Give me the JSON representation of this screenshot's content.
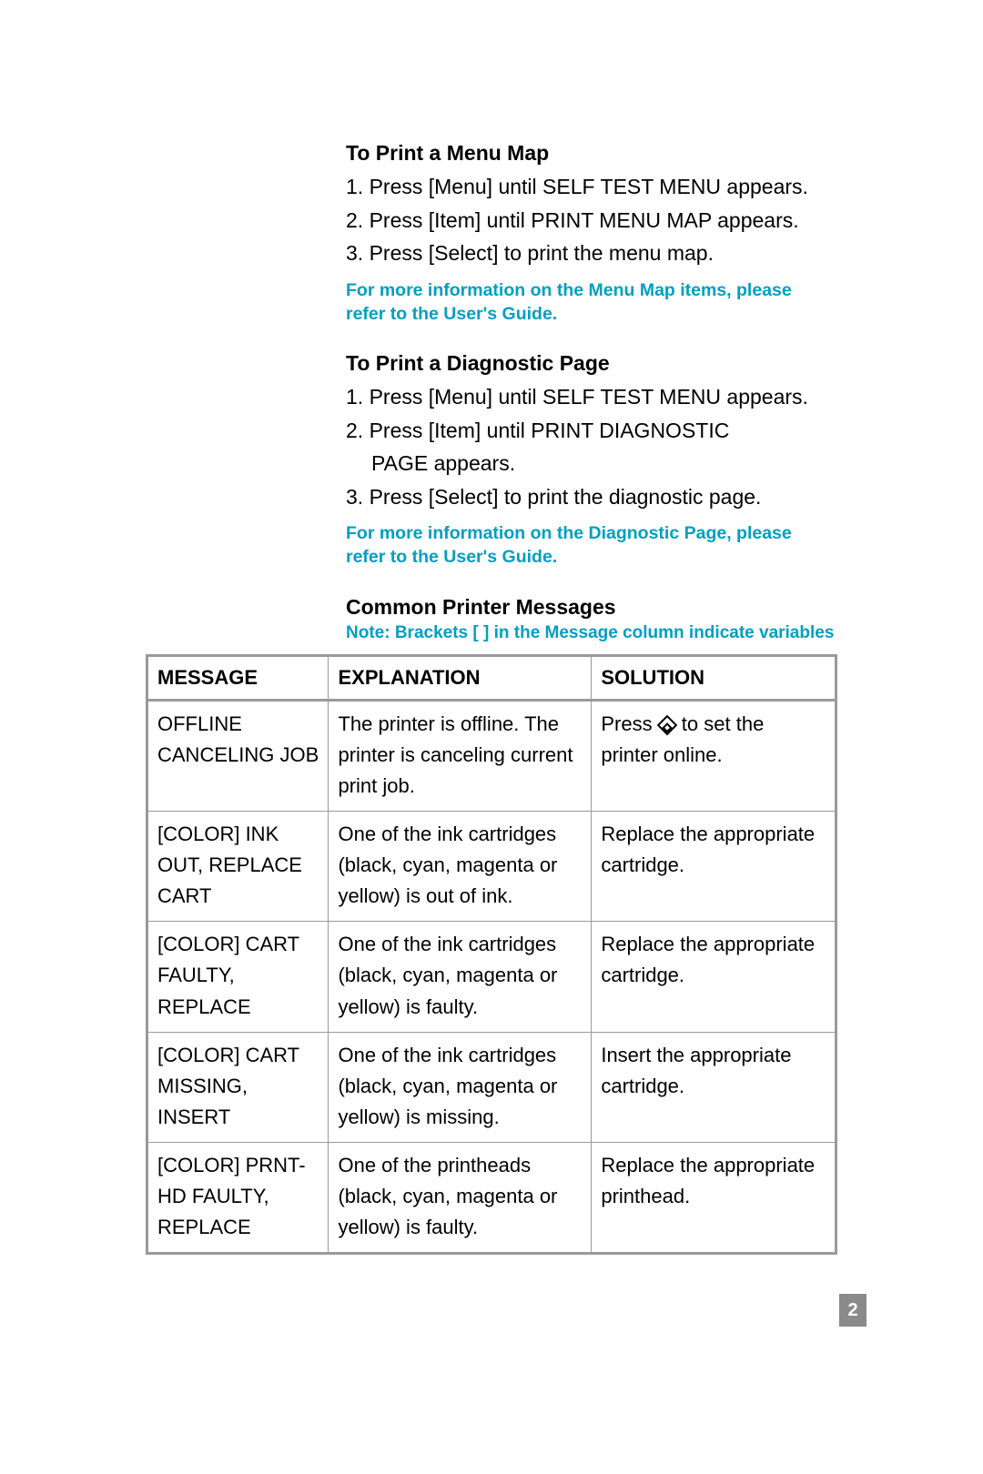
{
  "menuMap": {
    "heading": "To Print a Menu Map",
    "steps": [
      "1.  Press [Menu] until SELF TEST MENU appears.",
      "2.  Press [Item] until PRINT MENU MAP appears.",
      "3.  Press [Select] to print the menu map."
    ],
    "note": "For more information on the Menu Map items, please refer to the User's Guide."
  },
  "diagPage": {
    "heading": "To Print a Diagnostic Page",
    "steps": [
      "1.  Press [Menu] until SELF TEST MENU appears.",
      "2. Press [Item] until PRINT DIAGNOSTIC",
      "PAGE appears.",
      "3.  Press [Select] to print the diagnostic page."
    ],
    "note": "For more information on the Diagnostic Page, please refer  to the User's Guide."
  },
  "messagesSection": {
    "heading": "Common Printer Messages",
    "note": "Note: Brackets [ ] in the Message column indicate variables"
  },
  "table": {
    "headers": {
      "message": "MESSAGE",
      "explanation": "EXPLANATION",
      "solution": "SOLUTION"
    },
    "rows": [
      {
        "message": "OFFLINE CANCELING JOB",
        "explanation": "The printer is offline. The printer is canceling current print job.",
        "solutionPrefix": "Press ",
        "solutionSuffix": " to set the printer online."
      },
      {
        "message": "[COLOR] INK OUT, REPLACE CART",
        "explanation": "One of the ink cartridges (black, cyan, magenta or yellow) is out of ink.",
        "solution": "Replace the appropriate cartridge."
      },
      {
        "message": "[COLOR] CART FAULTY, REPLACE",
        "explanation": "One of the ink cartridges (black, cyan, magenta or yellow) is faulty.",
        "solution": "Replace the appropriate cartridge."
      },
      {
        "message": "[COLOR] CART MISSING, INSERT",
        "explanation": "One of the ink cartridges (black, cyan, magenta or yellow) is missing.",
        "solution": "Insert the appropriate cartridge."
      },
      {
        "message": "[COLOR] PRNT-HD FAULTY, REPLACE",
        "explanation": "One of the printheads (black, cyan, magenta or yellow) is faulty.",
        "solution": "Replace the appropriate printhead."
      }
    ]
  },
  "pageNumber": "2"
}
